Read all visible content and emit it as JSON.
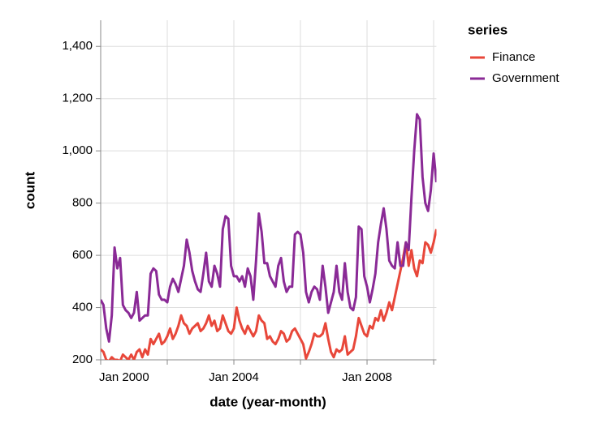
{
  "chart_data": {
    "type": "line",
    "x_label": "date (year-month)",
    "y_label": "count",
    "legend_title": "series",
    "legend": "top-right",
    "grid": true,
    "x": [
      "2000-01",
      "2000-02",
      "2000-03",
      "2000-04",
      "2000-05",
      "2000-06",
      "2000-07",
      "2000-08",
      "2000-09",
      "2000-10",
      "2000-11",
      "2000-12",
      "2001-01",
      "2001-02",
      "2001-03",
      "2001-04",
      "2001-05",
      "2001-06",
      "2001-07",
      "2001-08",
      "2001-09",
      "2001-10",
      "2001-11",
      "2001-12",
      "2002-01",
      "2002-02",
      "2002-03",
      "2002-04",
      "2002-05",
      "2002-06",
      "2002-07",
      "2002-08",
      "2002-09",
      "2002-10",
      "2002-11",
      "2002-12",
      "2003-01",
      "2003-02",
      "2003-03",
      "2003-04",
      "2003-05",
      "2003-06",
      "2003-07",
      "2003-08",
      "2003-09",
      "2003-10",
      "2003-11",
      "2003-12",
      "2004-01",
      "2004-02",
      "2004-03",
      "2004-04",
      "2004-05",
      "2004-06",
      "2004-07",
      "2004-08",
      "2004-09",
      "2004-10",
      "2004-11",
      "2004-12",
      "2005-01",
      "2005-02",
      "2005-03",
      "2005-04",
      "2005-05",
      "2005-06",
      "2005-07",
      "2005-08",
      "2005-09",
      "2005-10",
      "2005-11",
      "2005-12",
      "2006-01",
      "2006-02",
      "2006-03",
      "2006-04",
      "2006-05",
      "2006-06",
      "2006-07",
      "2006-08",
      "2006-09",
      "2006-10",
      "2006-11",
      "2006-12",
      "2007-01",
      "2007-02",
      "2007-03",
      "2007-04",
      "2007-05",
      "2007-06",
      "2007-07",
      "2007-08",
      "2007-09",
      "2007-10",
      "2007-11",
      "2007-12",
      "2008-01",
      "2008-02",
      "2008-03",
      "2008-04",
      "2008-05",
      "2008-06",
      "2008-07",
      "2008-08",
      "2008-09",
      "2008-10",
      "2008-11",
      "2008-12",
      "2009-01",
      "2009-02",
      "2009-03",
      "2009-04",
      "2009-05",
      "2009-06",
      "2009-07",
      "2009-08",
      "2009-09",
      "2009-10",
      "2009-11",
      "2009-12",
      "2010-01",
      "2010-02"
    ],
    "series": [
      {
        "name": "Finance",
        "color": "#e8473a",
        "values": [
          240,
          230,
          200,
          195,
          210,
          200,
          200,
          195,
          220,
          210,
          200,
          220,
          200,
          230,
          240,
          210,
          240,
          220,
          280,
          260,
          280,
          300,
          260,
          270,
          290,
          320,
          280,
          300,
          330,
          370,
          340,
          330,
          300,
          320,
          330,
          340,
          310,
          320,
          340,
          370,
          330,
          350,
          310,
          320,
          370,
          340,
          310,
          300,
          320,
          400,
          350,
          320,
          300,
          330,
          310,
          290,
          310,
          370,
          350,
          340,
          280,
          290,
          270,
          260,
          280,
          310,
          300,
          270,
          280,
          310,
          320,
          300,
          280,
          260,
          205,
          230,
          260,
          300,
          290,
          290,
          300,
          340,
          280,
          230,
          210,
          240,
          230,
          240,
          290,
          220,
          230,
          240,
          290,
          360,
          330,
          300,
          290,
          330,
          320,
          360,
          350,
          390,
          350,
          380,
          420,
          390,
          440,
          490,
          540,
          590,
          650,
          560,
          620,
          550,
          520,
          580,
          570,
          650,
          640,
          610,
          650,
          700
        ]
      },
      {
        "name": "Government",
        "color": "#8a2a96",
        "values": [
          430,
          410,
          320,
          270,
          370,
          630,
          550,
          590,
          410,
          390,
          380,
          360,
          380,
          460,
          350,
          360,
          370,
          370,
          530,
          550,
          540,
          450,
          430,
          430,
          420,
          480,
          510,
          490,
          460,
          510,
          560,
          660,
          610,
          540,
          500,
          470,
          460,
          530,
          610,
          500,
          480,
          560,
          530,
          480,
          700,
          750,
          740,
          560,
          520,
          520,
          500,
          520,
          480,
          550,
          520,
          430,
          580,
          760,
          690,
          570,
          570,
          520,
          500,
          480,
          560,
          590,
          500,
          460,
          480,
          480,
          680,
          690,
          680,
          610,
          460,
          420,
          460,
          480,
          470,
          430,
          560,
          480,
          380,
          420,
          460,
          560,
          460,
          430,
          570,
          460,
          400,
          390,
          440,
          710,
          700,
          520,
          480,
          420,
          470,
          530,
          650,
          720,
          780,
          700,
          580,
          560,
          550,
          650,
          560,
          560,
          650,
          620,
          820,
          1000,
          1140,
          1120,
          900,
          800,
          770,
          850,
          990,
          880
        ]
      }
    ],
    "xlim": [
      "2000-01",
      "2010-02"
    ],
    "xticks": [
      {
        "value": "2000-01",
        "label": "Jan 2000"
      },
      {
        "value": "2002-01",
        "label": null
      },
      {
        "value": "2004-01",
        "label": "Jan 2004"
      },
      {
        "value": "2006-01",
        "label": null
      },
      {
        "value": "2008-01",
        "label": "Jan 2008"
      },
      {
        "value": "2010-01",
        "label": null
      }
    ],
    "ylim": [
      200,
      1500
    ],
    "yticks": [
      200,
      400,
      600,
      800,
      {
        "value": 1000,
        "label": "1,000"
      },
      {
        "value": 1200,
        "label": "1,200"
      },
      {
        "value": 1400,
        "label": "1,400"
      }
    ]
  }
}
